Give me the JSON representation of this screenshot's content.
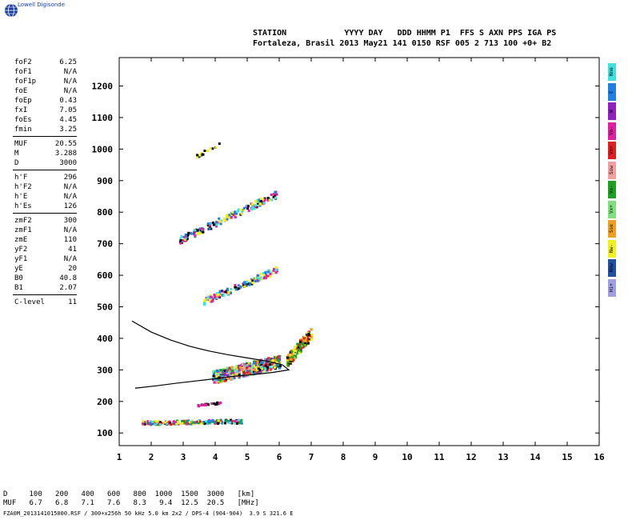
{
  "logo": {
    "text": "Lowell Digisonde"
  },
  "header": {
    "row1": "STATION            YYYY DAY   DDD HHMM P1  FFS S AXN PPS IGA PS",
    "row2": "Fortaleza, Brasil 2013 May21 141 0150 RSF 005 2 713 100 +0+ B2"
  },
  "params": [
    {
      "k": "foF2",
      "v": "6.25"
    },
    {
      "k": "foF1",
      "v": "N/A"
    },
    {
      "k": "foF1p",
      "v": "N/A"
    },
    {
      "k": "foE",
      "v": "N/A"
    },
    {
      "k": "foEp",
      "v": "0.43"
    },
    {
      "k": "fxI",
      "v": "7.05"
    },
    {
      "k": "foEs",
      "v": "4.45"
    },
    {
      "k": "fmin",
      "v": "3.25"
    },
    {
      "k": "MUF",
      "v": "20.55"
    },
    {
      "k": "M",
      "v": "3.288"
    },
    {
      "k": "D",
      "v": "3000"
    },
    {
      "k": "h'F",
      "v": "296"
    },
    {
      "k": "h'F2",
      "v": "N/A"
    },
    {
      "k": "h'E",
      "v": "N/A"
    },
    {
      "k": "h'Es",
      "v": "126"
    },
    {
      "k": "zmF2",
      "v": "300"
    },
    {
      "k": "zmF1",
      "v": "N/A"
    },
    {
      "k": "zmE",
      "v": "110"
    },
    {
      "k": "yF2",
      "v": "41"
    },
    {
      "k": "yF1",
      "v": "N/A"
    },
    {
      "k": "yE",
      "v": "20"
    },
    {
      "k": "B0",
      "v": "40.8"
    },
    {
      "k": "B1",
      "v": "2.07"
    },
    {
      "k": "C-level",
      "v": "11"
    }
  ],
  "muf_table": {
    "d_row": "D     100   200   400   600   800  1000  1500  3000   [km]",
    "muf_row": "MUF   6.7   6.8   7.1   7.6   8.3   9.4  12.5  20.5   [MHz]"
  },
  "footer": "FZA0M_2013141015000.RSF / 300+x256h 50 kHz 5.0 km 2x2 / DPS-4 (904-904)  3.9 S 321.6 E",
  "legend": [
    {
      "label": "Nne",
      "color": "#40e0e0"
    },
    {
      "label": "E",
      "color": "#2080e0"
    },
    {
      "label": "W",
      "color": "#9020c0"
    },
    {
      "label": "Vo-",
      "color": "#e020a0"
    },
    {
      "label": "Vo+",
      "color": "#e02020"
    },
    {
      "label": "Ssw",
      "color": "#f0a0a0"
    },
    {
      "label": "Vx-",
      "color": "#20a020"
    },
    {
      "label": "Vx+",
      "color": "#80e080"
    },
    {
      "label": "Sse",
      "color": "#f0a020"
    },
    {
      "label": "Nw-",
      "color": "#f0f020"
    },
    {
      "label": "Nnw",
      "color": "#2050a0"
    },
    {
      "label": "Hi+",
      "color": "#a0a0e0"
    }
  ],
  "chart_data": {
    "type": "scatter",
    "title": "",
    "xlabel": "",
    "ylabel": "",
    "xlim": [
      1,
      16
    ],
    "ylim": [
      60,
      1290
    ],
    "x_ticks": [
      1,
      2,
      3,
      4,
      5,
      6,
      7,
      8,
      9,
      10,
      11,
      12,
      13,
      14,
      15,
      16
    ],
    "y_ticks": [
      100,
      200,
      300,
      400,
      500,
      600,
      700,
      800,
      900,
      1000,
      1100,
      1200
    ],
    "grid": false,
    "series": [
      {
        "color": "#000000",
        "values": [
          [
            1.4,
            455
          ],
          [
            2.0,
            420
          ],
          [
            2.6,
            395
          ],
          [
            3.2,
            375
          ],
          [
            3.8,
            360
          ],
          [
            4.4,
            348
          ],
          [
            5.0,
            338
          ],
          [
            5.6,
            328
          ],
          [
            6.1,
            316
          ],
          [
            6.3,
            300
          ],
          [
            5.8,
            292
          ],
          [
            5.2,
            285
          ],
          [
            4.6,
            280
          ],
          [
            4.0,
            272
          ],
          [
            3.4,
            265
          ],
          [
            2.8,
            258
          ],
          [
            2.2,
            250
          ],
          [
            1.5,
            242
          ]
        ]
      }
    ]
  }
}
